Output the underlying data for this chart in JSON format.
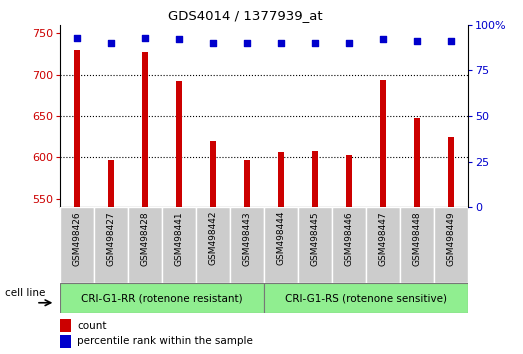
{
  "title": "GDS4014 / 1377939_at",
  "samples": [
    "GSM498426",
    "GSM498427",
    "GSM498428",
    "GSM498441",
    "GSM498442",
    "GSM498443",
    "GSM498444",
    "GSM498445",
    "GSM498446",
    "GSM498447",
    "GSM498448",
    "GSM498449"
  ],
  "bar_values": [
    730,
    597,
    727,
    692,
    620,
    597,
    607,
    608,
    603,
    693,
    648,
    625
  ],
  "percentile_values": [
    93,
    90,
    93,
    92,
    90,
    90,
    90,
    90,
    90,
    92,
    91,
    91
  ],
  "bar_color": "#cc0000",
  "dot_color": "#0000cc",
  "ylim_left": [
    540,
    760
  ],
  "ylim_right": [
    0,
    100
  ],
  "yticks_left": [
    550,
    600,
    650,
    700,
    750
  ],
  "yticks_right": [
    0,
    25,
    50,
    75,
    100
  ],
  "ytick_right_labels": [
    "0",
    "25",
    "50",
    "75",
    "100%"
  ],
  "grid_values": [
    600,
    650,
    700
  ],
  "group1_label": "CRI-G1-RR (rotenone resistant)",
  "group2_label": "CRI-G1-RS (rotenone sensitive)",
  "group1_count": 6,
  "group2_count": 6,
  "cell_line_label": "cell line",
  "legend_count_label": "count",
  "legend_pct_label": "percentile rank within the sample",
  "group_bg_color": "#90ee90",
  "tick_label_bg": "#cccccc",
  "bar_width": 0.18
}
